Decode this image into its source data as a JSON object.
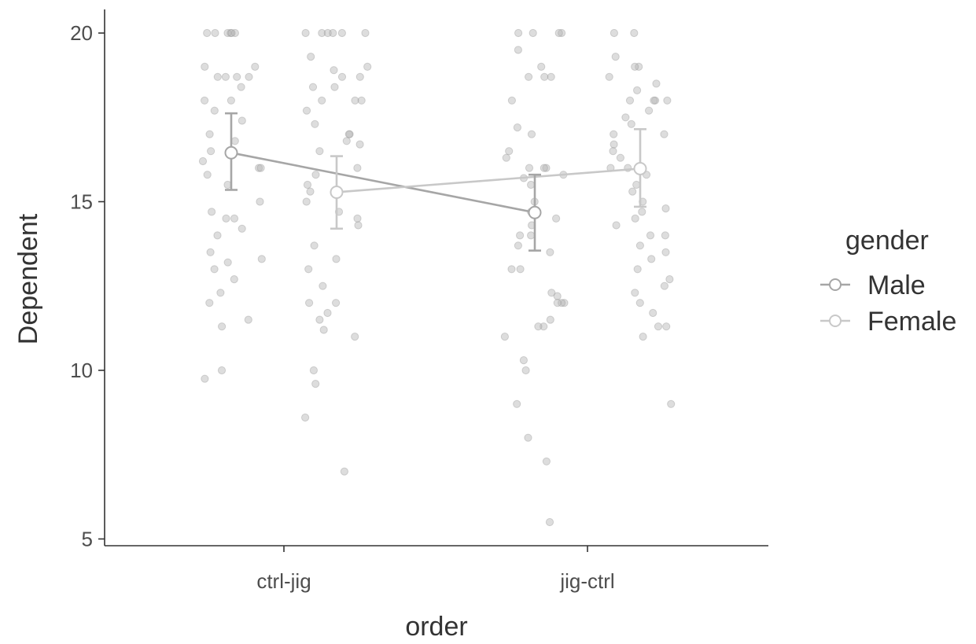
{
  "chart_data": {
    "type": "scatter",
    "xlabel": "order",
    "ylabel": "Dependent",
    "categories": [
      "ctrl-jig",
      "jig-ctrl"
    ],
    "ylim": [
      4.8,
      20.7
    ],
    "yticks": [
      5,
      10,
      15,
      20
    ],
    "grid": false,
    "legend": {
      "title": "gender",
      "position": "right"
    },
    "colors": {
      "Male": "#a6a6a6",
      "Female": "#c8c8c8",
      "points": "#b3b3b3",
      "axis": "#333333"
    },
    "series": [
      {
        "name": "Male",
        "means": [
          16.45,
          14.68
        ],
        "ci_low": [
          15.35,
          13.55
        ],
        "ci_high": [
          17.62,
          15.8
        ],
        "points": {
          "ctrl-jig": [
            20.0,
            20.0,
            20.0,
            20.0,
            20.0,
            20.0,
            19.0,
            19.0,
            18.7,
            18.7,
            18.7,
            18.7,
            18.4,
            18.0,
            18.0,
            17.7,
            17.4,
            17.0,
            16.8,
            16.5,
            16.5,
            16.2,
            16.0,
            16.0,
            15.8,
            15.5,
            15.0,
            14.7,
            14.5,
            14.5,
            14.2,
            14.0,
            13.5,
            13.3,
            13.2,
            13.0,
            12.7,
            12.3,
            12.0,
            11.5,
            11.3,
            10.0,
            9.75
          ],
          "jig-ctrl": [
            20.0,
            20.0,
            20.0,
            20.0,
            19.5,
            19.0,
            18.7,
            18.7,
            18.7,
            18.0,
            17.2,
            17.0,
            16.5,
            16.3,
            16.0,
            16.0,
            16.0,
            15.8,
            15.7,
            15.5,
            15.0,
            14.7,
            14.5,
            14.3,
            14.0,
            14.0,
            13.7,
            13.5,
            13.0,
            13.0,
            12.3,
            12.2,
            12.0,
            12.0,
            12.0,
            11.5,
            11.3,
            11.3,
            11.0,
            10.3,
            10.0,
            9.0,
            8.0,
            7.3,
            5.5
          ]
        }
      },
      {
        "name": "Female",
        "means": [
          15.28,
          15.98
        ],
        "ci_low": [
          14.2,
          14.85
        ],
        "ci_high": [
          16.35,
          17.15
        ],
        "points": {
          "ctrl-jig": [
            20.0,
            20.0,
            20.0,
            20.0,
            20.0,
            20.0,
            19.3,
            19.0,
            18.9,
            18.7,
            18.7,
            18.4,
            18.4,
            18.0,
            18.0,
            18.0,
            17.7,
            17.3,
            17.0,
            17.0,
            16.8,
            16.7,
            16.5,
            16.0,
            15.8,
            15.5,
            15.3,
            15.0,
            14.7,
            14.5,
            14.3,
            13.7,
            13.3,
            13.0,
            12.5,
            12.0,
            12.0,
            11.7,
            11.5,
            11.2,
            11.0,
            10.0,
            9.6,
            8.6,
            7.0
          ],
          "jig-ctrl": [
            20.0,
            20.0,
            19.3,
            19.0,
            19.0,
            18.7,
            18.5,
            18.3,
            18.0,
            18.0,
            18.0,
            18.0,
            17.7,
            17.5,
            17.3,
            17.0,
            17.0,
            16.7,
            16.5,
            16.3,
            16.0,
            16.0,
            15.8,
            15.5,
            15.3,
            15.0,
            14.8,
            14.7,
            14.5,
            14.3,
            14.0,
            14.0,
            13.7,
            13.5,
            13.3,
            13.0,
            12.7,
            12.5,
            12.3,
            12.0,
            11.7,
            11.3,
            11.3,
            11.0,
            9.0
          ]
        }
      }
    ]
  }
}
